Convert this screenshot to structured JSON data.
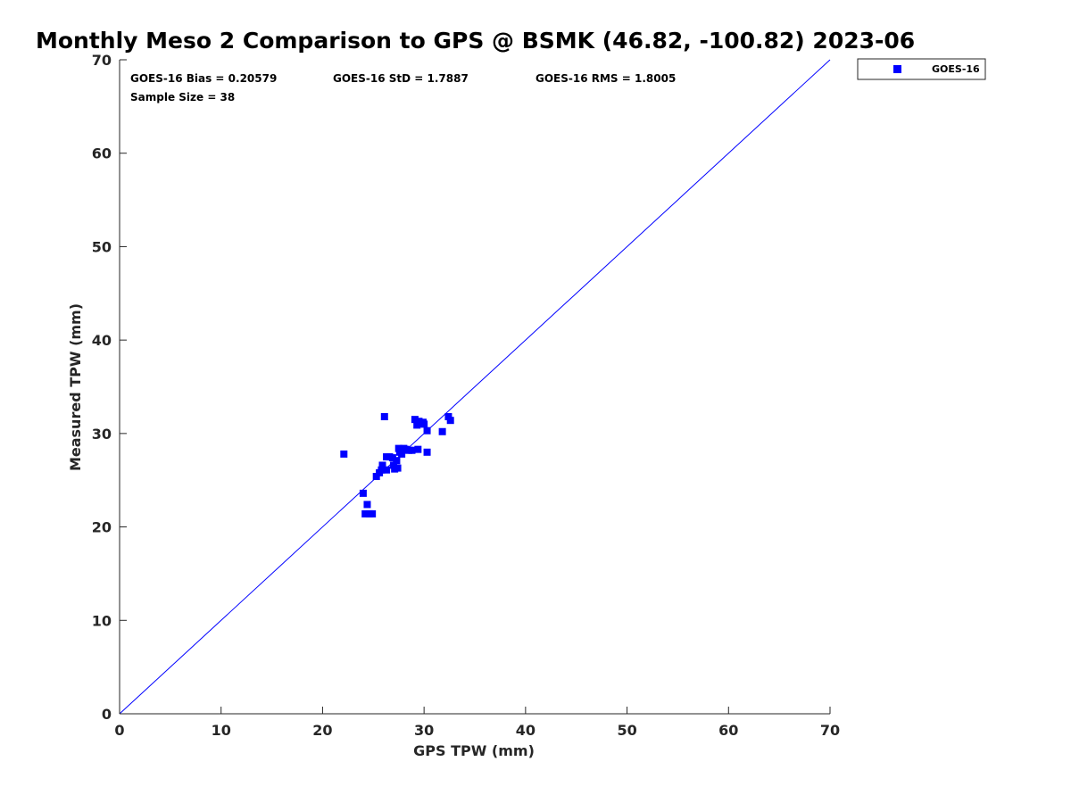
{
  "chart_data": {
    "type": "scatter",
    "title": "Monthly Meso 2 Comparison to GPS @ BSMK (46.82, -100.82) 2023-06",
    "xlabel": "GPS TPW (mm)",
    "ylabel": "Measured TPW (mm)",
    "xlim": [
      0,
      70
    ],
    "ylim": [
      0,
      70
    ],
    "xticks": [
      "0",
      "10",
      "20",
      "30",
      "40",
      "50",
      "60",
      "70"
    ],
    "yticks": [
      "0",
      "10",
      "20",
      "30",
      "40",
      "50",
      "60",
      "70"
    ],
    "grid": false,
    "legend_position": "top-right, outside plot",
    "reference_line": {
      "from": [
        0,
        0
      ],
      "to": [
        70,
        70
      ],
      "color": "#0000ff"
    },
    "stats": {
      "bias": "GOES-16 Bias = 0.20579",
      "std": "GOES-16 StD = 1.7887",
      "rms": "GOES-16 RMS = 1.8005",
      "sample": "Sample Size = 38"
    },
    "series": [
      {
        "name": "GOES-16",
        "color": "#0000ff",
        "marker": "square",
        "points": [
          [
            22.1,
            27.8
          ],
          [
            24.0,
            23.6
          ],
          [
            24.2,
            21.4
          ],
          [
            24.4,
            22.4
          ],
          [
            24.6,
            21.4
          ],
          [
            24.9,
            21.4
          ],
          [
            25.3,
            25.4
          ],
          [
            25.6,
            25.8
          ],
          [
            25.8,
            26.1
          ],
          [
            25.9,
            26.6
          ],
          [
            26.1,
            31.8
          ],
          [
            26.3,
            26.1
          ],
          [
            26.3,
            27.5
          ],
          [
            26.6,
            27.5
          ],
          [
            26.9,
            27.4
          ],
          [
            27.0,
            26.6
          ],
          [
            27.1,
            26.2
          ],
          [
            27.3,
            27.1
          ],
          [
            27.4,
            26.3
          ],
          [
            27.5,
            28.4
          ],
          [
            27.6,
            28.0
          ],
          [
            27.8,
            27.8
          ],
          [
            28.0,
            28.4
          ],
          [
            28.2,
            28.3
          ],
          [
            28.5,
            28.2
          ],
          [
            28.8,
            28.2
          ],
          [
            29.1,
            31.5
          ],
          [
            29.3,
            30.9
          ],
          [
            29.4,
            28.3
          ],
          [
            29.5,
            31.3
          ],
          [
            29.7,
            31.1
          ],
          [
            29.9,
            31.2
          ],
          [
            30.0,
            31.0
          ],
          [
            30.3,
            28.0
          ],
          [
            30.3,
            30.3
          ],
          [
            31.8,
            30.2
          ],
          [
            32.4,
            31.8
          ],
          [
            32.6,
            31.4
          ]
        ]
      }
    ]
  }
}
